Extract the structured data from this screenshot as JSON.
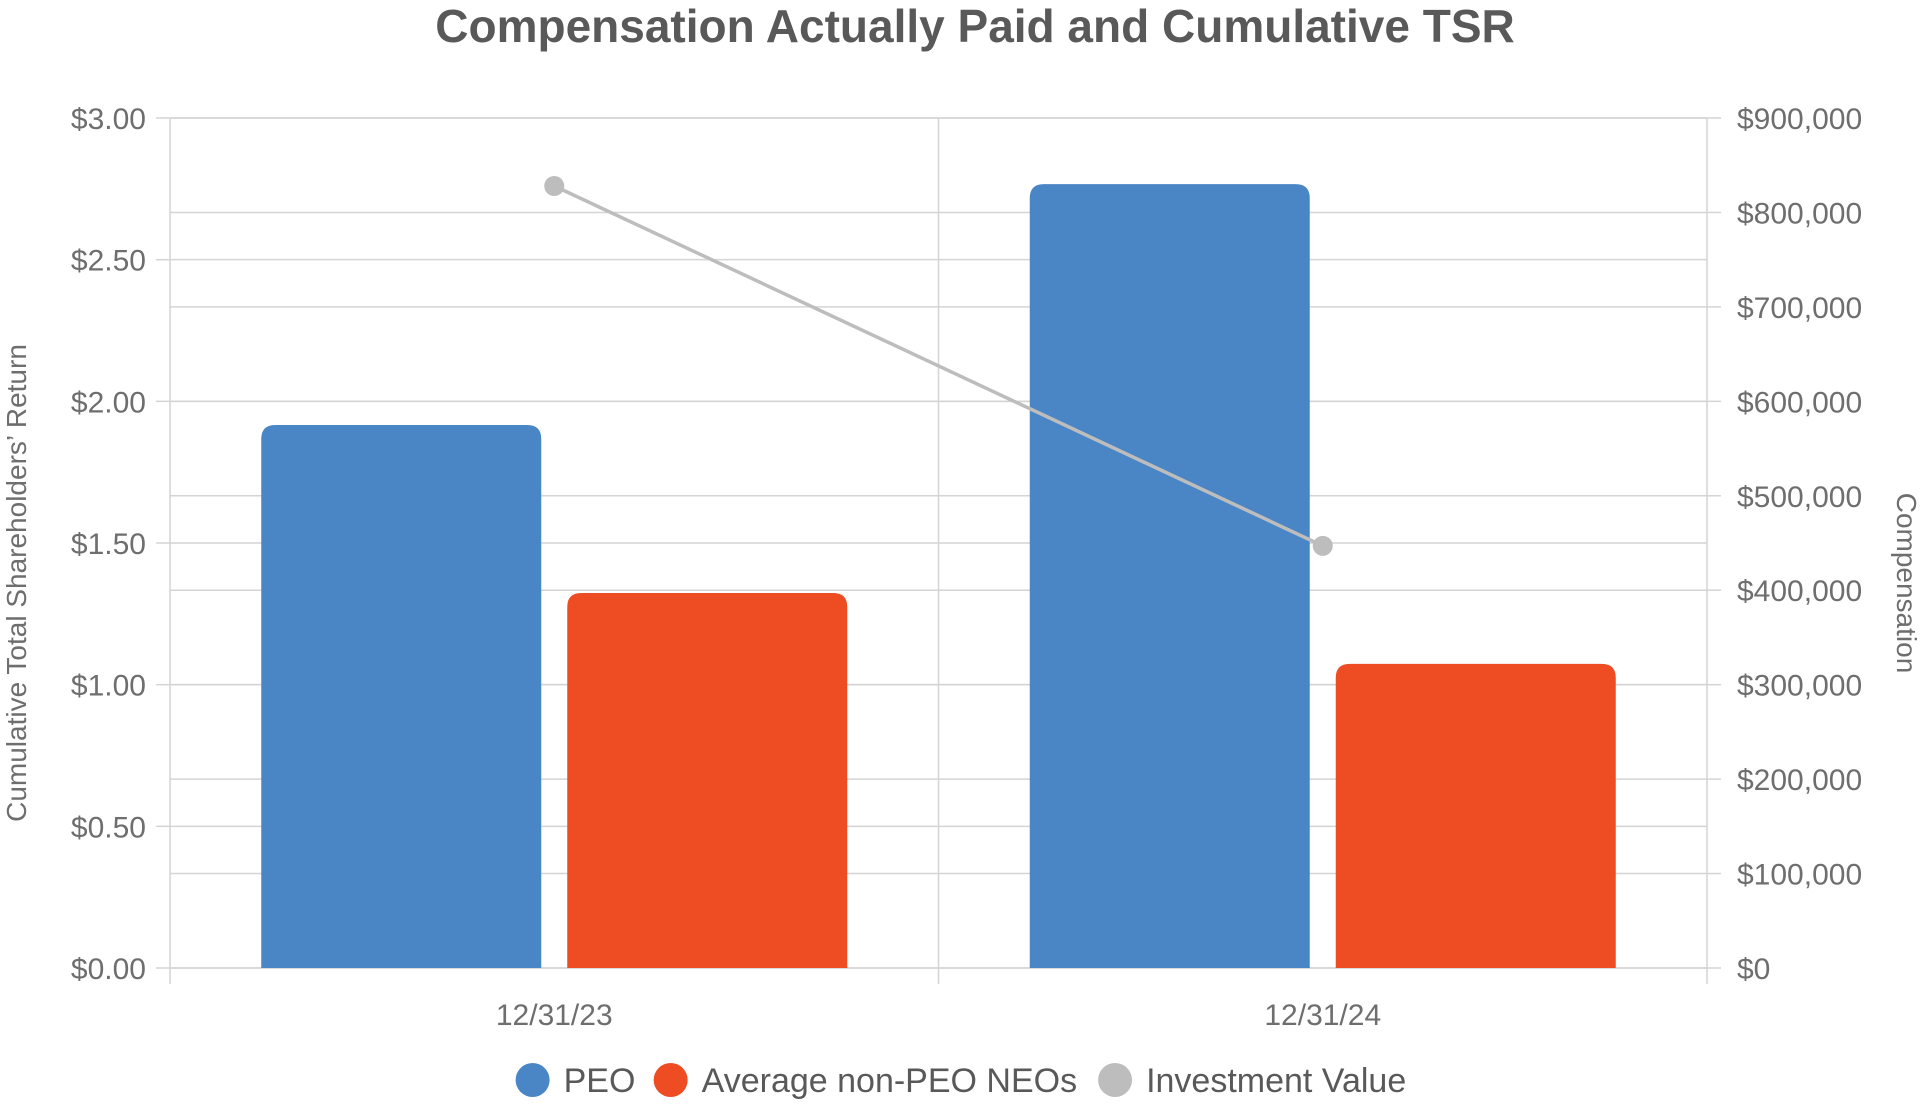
{
  "chart_data": {
    "type": "bar",
    "title": "Compensation Actually Paid and Cumulative TSR",
    "categories": [
      "12/31/23",
      "12/31/24"
    ],
    "y_left": {
      "label": "Cumulative Total Shareholders’ Return",
      "range": [
        0,
        3
      ],
      "ticks": [
        0,
        0.5,
        1.0,
        1.5,
        2.0,
        2.5,
        3.0
      ],
      "tick_labels": [
        "$0.00",
        "$0.50",
        "$1.00",
        "$1.50",
        "$2.00",
        "$2.50",
        "$3.00"
      ]
    },
    "y_right": {
      "label": "Compensation",
      "range": [
        0,
        900000
      ],
      "ticks": [
        0,
        100000,
        200000,
        300000,
        400000,
        500000,
        600000,
        700000,
        800000,
        900000
      ],
      "tick_labels": [
        "$0",
        "$100,000",
        "$200,000",
        "$300,000",
        "$400,000",
        "$500,000",
        "$600,000",
        "$700,000",
        "$800,000",
        "$900,000"
      ]
    },
    "series": [
      {
        "name": "PEO",
        "kind": "bar",
        "axis": "right",
        "color": "#4a86c5",
        "values": [
          575000,
          830000
        ]
      },
      {
        "name": "Average non-PEO NEOs",
        "kind": "bar",
        "axis": "right",
        "color": "#ee4c22",
        "values": [
          397000,
          322000
        ]
      },
      {
        "name": "Investment Value",
        "kind": "line",
        "axis": "left",
        "color": "#bdbdbd",
        "values": [
          2.76,
          1.49
        ]
      }
    ],
    "grid": true,
    "legend_position": "bottom"
  }
}
